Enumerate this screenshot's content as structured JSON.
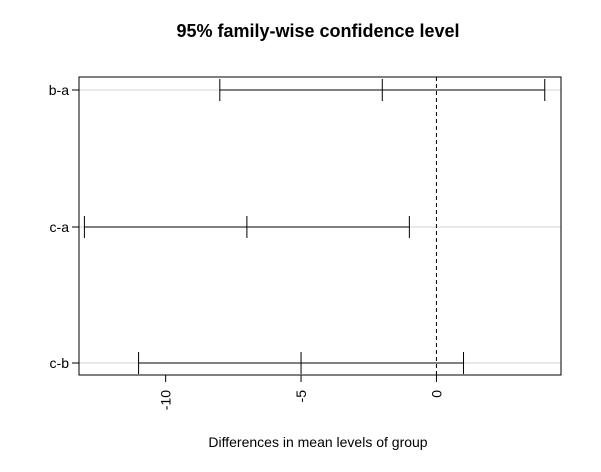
{
  "chart_data": {
    "type": "errorbar",
    "title": "95% family-wise confidence level",
    "xlabel": "Differences in mean levels of group",
    "ylabel": "",
    "xlim": [
      -13.2,
      4.6
    ],
    "x_ticks": [
      -10,
      -5,
      0
    ],
    "x_tick_labels": [
      "-10",
      "-5",
      "0"
    ],
    "reference_line": 0,
    "grid": "horizontal lines at each comparison",
    "comparisons": [
      {
        "label": "b-a",
        "diff": -2.0,
        "lwr": -8.0,
        "upr": 4.0
      },
      {
        "label": "c-a",
        "diff": -7.0,
        "lwr": -13.0,
        "upr": -1.0
      },
      {
        "label": "c-b",
        "diff": -5.0,
        "lwr": -11.0,
        "upr": 1.0
      }
    ]
  },
  "colors": {
    "line": "#000000",
    "grid": "#d3d3d3",
    "background": "#ffffff"
  }
}
